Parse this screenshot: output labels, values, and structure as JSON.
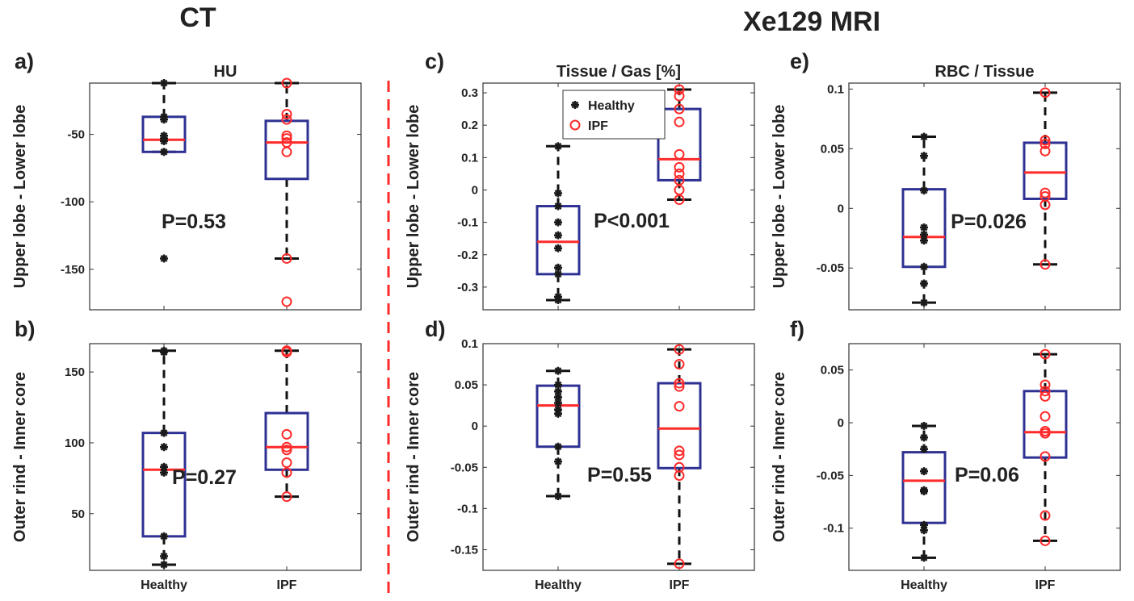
{
  "section_titles": {
    "ct": "CT",
    "mri": "Xe129 MRI"
  },
  "colors": {
    "box": "#2e3192",
    "median": "#ff2a2a",
    "healthy": "#1a1a1a",
    "ipf": "#ff2a2a",
    "divider": "#ff2a2a",
    "axis": "#333333"
  },
  "legend": {
    "healthy": "Healthy",
    "ipf": "IPF"
  },
  "chart_data": [
    {
      "id": "a",
      "type": "boxplot",
      "letter": "a)",
      "title": "HU",
      "ylabel": "Upper lobe - Lower lobe",
      "categories": [
        "Healthy",
        "IPF"
      ],
      "ylim": [
        -180,
        -12
      ],
      "yticks": [
        -150,
        -100,
        -50
      ],
      "tick_labels": [
        "-150",
        "-100",
        "-50"
      ],
      "p_value": "P=0.53",
      "healthy": {
        "whisker_low": -63,
        "q1": -63,
        "median": -54,
        "q3": -37,
        "whisker_high": -12,
        "points": [
          -12,
          -37,
          -39,
          -51,
          -53,
          -55,
          -63,
          -142
        ]
      },
      "ipf": {
        "whisker_low": -142,
        "q1": -83,
        "median": -56,
        "q3": -40,
        "whisker_high": -12,
        "points": [
          -12,
          -35,
          -39,
          -51,
          -53,
          -56,
          -63,
          -142,
          -174
        ]
      }
    },
    {
      "id": "b",
      "type": "boxplot",
      "letter": "b)",
      "title": "",
      "ylabel": "Outer rind - Inner core",
      "categories": [
        "Healthy",
        "IPF"
      ],
      "ylim": [
        10,
        170
      ],
      "yticks": [
        50,
        100,
        150
      ],
      "tick_labels": [
        "50",
        "100",
        "150"
      ],
      "p_value": "P=0.27",
      "healthy": {
        "whisker_low": 14,
        "q1": 34,
        "median": 81,
        "q3": 107,
        "whisker_high": 165,
        "points": [
          14,
          20,
          34,
          79,
          83,
          97,
          107,
          164,
          165
        ]
      },
      "ipf": {
        "whisker_low": 62,
        "q1": 81,
        "median": 97,
        "q3": 121,
        "whisker_high": 165,
        "points": [
          62,
          79,
          86,
          95,
          97,
          106,
          164,
          165
        ]
      }
    },
    {
      "id": "c",
      "type": "boxplot",
      "letter": "c)",
      "title": "Tissue / Gas [%]",
      "ylabel": "Upper lobe - Lower lobe",
      "categories": [
        "Healthy",
        "IPF"
      ],
      "ylim": [
        -0.37,
        0.33
      ],
      "yticks": [
        -0.3,
        -0.2,
        -0.1,
        0,
        0.1,
        0.2,
        0.3
      ],
      "tick_labels": [
        "-0.3",
        "-0.2",
        "-0.1",
        "0",
        "0.1",
        "0.2",
        "0.3"
      ],
      "p_value": "P<0.001",
      "healthy": {
        "whisker_low": -0.34,
        "q1": -0.26,
        "median": -0.16,
        "q3": -0.05,
        "whisker_high": 0.135,
        "points": [
          0.135,
          -0.01,
          -0.05,
          -0.1,
          -0.14,
          -0.18,
          -0.24,
          -0.26,
          -0.33,
          -0.34
        ]
      },
      "ipf": {
        "whisker_low": -0.03,
        "q1": 0.03,
        "median": 0.095,
        "q3": 0.25,
        "whisker_high": 0.31,
        "points": [
          0.31,
          0.29,
          0.25,
          0.21,
          0.11,
          0.07,
          0.05,
          0.03,
          0.0,
          -0.03
        ]
      },
      "legend_position": "top-center"
    },
    {
      "id": "d",
      "type": "boxplot",
      "letter": "d)",
      "title": "",
      "ylabel": "Outer rind - Inner core",
      "categories": [
        "Healthy",
        "IPF"
      ],
      "ylim": [
        -0.175,
        0.1
      ],
      "yticks": [
        -0.15,
        -0.1,
        -0.05,
        0,
        0.05,
        0.1
      ],
      "tick_labels": [
        "-0.15",
        "-0.1",
        "-0.05",
        "0",
        "0.05",
        "0.1"
      ],
      "p_value": "P=0.55",
      "healthy": {
        "whisker_low": -0.085,
        "q1": -0.025,
        "median": 0.025,
        "q3": 0.049,
        "whisker_high": 0.067,
        "points": [
          0.067,
          0.05,
          0.042,
          0.035,
          0.028,
          0.02,
          0.015,
          -0.025,
          -0.043,
          -0.085
        ]
      },
      "ipf": {
        "whisker_low": -0.167,
        "q1": -0.051,
        "median": -0.003,
        "q3": 0.052,
        "whisker_high": 0.093,
        "points": [
          0.093,
          0.075,
          0.052,
          0.048,
          0.024,
          -0.03,
          -0.035,
          -0.05,
          -0.06,
          -0.167
        ]
      }
    },
    {
      "id": "e",
      "type": "boxplot",
      "letter": "e)",
      "title": "RBC / Tissue",
      "ylabel": "Upper lobe - Lower lobe",
      "categories": [
        "Healthy",
        "IPF"
      ],
      "ylim": [
        -0.085,
        0.105
      ],
      "yticks": [
        -0.05,
        0,
        0.05,
        0.1
      ],
      "tick_labels": [
        "-0.05",
        "0",
        "0.05",
        "0.1"
      ],
      "p_value": "P=0.026",
      "healthy": {
        "whisker_low": -0.079,
        "q1": -0.049,
        "median": -0.024,
        "q3": 0.016,
        "whisker_high": 0.06,
        "points": [
          0.06,
          0.044,
          0.015,
          -0.016,
          -0.022,
          -0.027,
          -0.049,
          -0.063,
          -0.079
        ]
      },
      "ipf": {
        "whisker_low": -0.047,
        "q1": 0.008,
        "median": 0.03,
        "q3": 0.055,
        "whisker_high": 0.097,
        "points": [
          0.097,
          0.057,
          0.054,
          0.048,
          0.013,
          0.01,
          0.003,
          -0.047
        ]
      }
    },
    {
      "id": "f",
      "type": "boxplot",
      "letter": "f)",
      "title": "",
      "ylabel": "Outer rind - Inner core",
      "categories": [
        "Healthy",
        "IPF"
      ],
      "ylim": [
        -0.14,
        0.075
      ],
      "yticks": [
        -0.1,
        -0.05,
        0,
        0.05
      ],
      "tick_labels": [
        "-0.1",
        "-0.05",
        "0",
        "0.05"
      ],
      "p_value": "P=0.06",
      "healthy": {
        "whisker_low": -0.128,
        "q1": -0.095,
        "median": -0.055,
        "q3": -0.028,
        "whisker_high": -0.003,
        "points": [
          -0.003,
          -0.014,
          -0.025,
          -0.046,
          -0.064,
          -0.065,
          -0.097,
          -0.102,
          -0.128
        ]
      },
      "ipf": {
        "whisker_low": -0.112,
        "q1": -0.033,
        "median": -0.009,
        "q3": 0.03,
        "whisker_high": 0.065,
        "points": [
          0.065,
          0.036,
          0.03,
          0.025,
          0.006,
          -0.008,
          -0.01,
          -0.032,
          -0.088,
          -0.112
        ]
      }
    }
  ]
}
